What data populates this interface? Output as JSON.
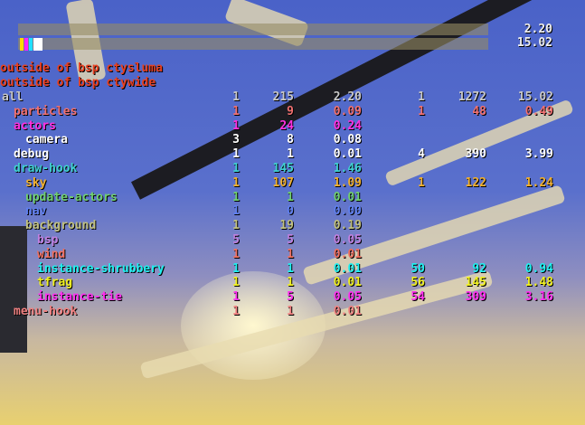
{
  "header_lines": [
    "outside of bsp ctysluma",
    "outside of bsp ctywide"
  ],
  "top_right": {
    "frame_ms": "2.20",
    "total_ms": "15.02"
  },
  "swatch_colors": [
    "#ffd800",
    "#ff20ff",
    "#20e0ff",
    "#ffffff"
  ],
  "rows": [
    {
      "name": "all",
      "indent": 0,
      "color": "#c8c8c8",
      "c": [
        "1",
        "215",
        "2.20",
        "1",
        "1272",
        "15.02"
      ]
    },
    {
      "name": "particles",
      "indent": 1,
      "color": "#f07070",
      "c": [
        "1",
        "9",
        "0.09",
        "1",
        "48",
        "0.49"
      ]
    },
    {
      "name": "actors",
      "indent": 1,
      "color": "#ff30e0",
      "c": [
        "1",
        "24",
        "0.24",
        "",
        "",
        ""
      ]
    },
    {
      "name": "camera",
      "indent": 2,
      "color": "#ffffff",
      "c": [
        "3",
        "8",
        "0.08",
        "",
        "",
        ""
      ]
    },
    {
      "name": "debug",
      "indent": 1,
      "color": "#ffffff",
      "c": [
        "1",
        "1",
        "0.01",
        "4",
        "390",
        "3.99"
      ]
    },
    {
      "name": "draw-hook",
      "indent": 1,
      "color": "#40d0d0",
      "c": [
        "1",
        "145",
        "1.46",
        "",
        "",
        ""
      ]
    },
    {
      "name": "sky",
      "indent": 2,
      "color": "#f0b030",
      "c": [
        "1",
        "107",
        "1.09",
        "1",
        "122",
        "1.24"
      ]
    },
    {
      "name": "update-actors",
      "indent": 2,
      "color": "#70d070",
      "c": [
        "1",
        "1",
        "0.01",
        "",
        "",
        ""
      ]
    },
    {
      "name": "nav",
      "indent": 2,
      "color": "#6080f0",
      "c": [
        "1",
        "0",
        "0.00",
        "",
        "",
        ""
      ]
    },
    {
      "name": "background",
      "indent": 2,
      "color": "#c0c080",
      "c": [
        "1",
        "19",
        "0.19",
        "",
        "",
        ""
      ]
    },
    {
      "name": "bsp",
      "indent": 3,
      "color": "#c080e0",
      "c": [
        "5",
        "5",
        "0.05",
        "",
        "",
        ""
      ]
    },
    {
      "name": "wind",
      "indent": 3,
      "color": "#f07060",
      "c": [
        "1",
        "1",
        "0.01",
        "",
        "",
        ""
      ]
    },
    {
      "name": "instance-shrubbery",
      "indent": 3,
      "color": "#20f0f0",
      "c": [
        "1",
        "1",
        "0.01",
        "50",
        "92",
        "0.94"
      ]
    },
    {
      "name": "tfrag",
      "indent": 3,
      "color": "#f0f020",
      "c": [
        "1",
        "1",
        "0.01",
        "56",
        "145",
        "1.48"
      ]
    },
    {
      "name": "instance-tie",
      "indent": 3,
      "color": "#ff30f0",
      "c": [
        "1",
        "5",
        "0.05",
        "54",
        "309",
        "3.16"
      ]
    },
    {
      "name": "menu-hook",
      "indent": 1,
      "color": "#f08080",
      "c": [
        "1",
        "1",
        "0.01",
        "",
        "",
        ""
      ]
    }
  ]
}
